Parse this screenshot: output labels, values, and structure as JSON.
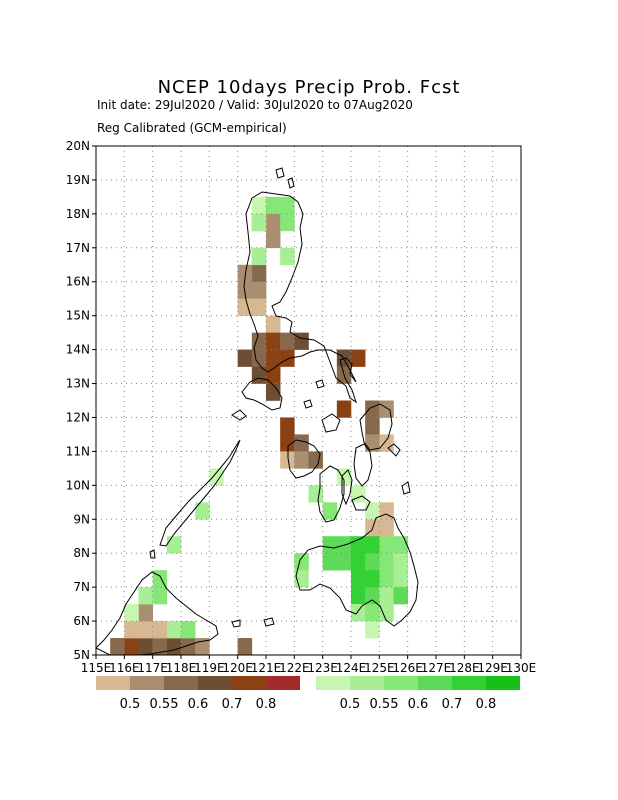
{
  "header": {
    "title": "NCEP 10days Precip Prob. Fcst",
    "subtitle": "Init date: 29Jul2020 / Valid: 30Jul2020 to 07Aug2020",
    "method": "Reg Calibrated (GCM-empirical)"
  },
  "map": {
    "lon_range": [
      115,
      130
    ],
    "lat_range": [
      5,
      20
    ],
    "lon_tick_labels": [
      "115E",
      "116E",
      "117E",
      "118E",
      "119E",
      "120E",
      "121E",
      "122E",
      "123E",
      "124E",
      "125E",
      "126E",
      "127E",
      "128E",
      "129E",
      "130E"
    ],
    "lat_tick_labels": [
      "5N",
      "6N",
      "7N",
      "8N",
      "9N",
      "10N",
      "11N",
      "12N",
      "13N",
      "14N",
      "15N",
      "16N",
      "17N",
      "18N",
      "19N",
      "20N"
    ],
    "grid": "dotted"
  },
  "legends": {
    "dry": {
      "colors": [
        "#d8b892",
        "#a98e6f",
        "#87694d",
        "#6d4e33",
        "#8a4214",
        "#a32b2b"
      ],
      "labels": [
        "0.5",
        "0.55",
        "0.6",
        "0.7",
        "0.8"
      ]
    },
    "wet": {
      "colors": [
        "#c8f5b0",
        "#a8ee94",
        "#86e676",
        "#5ddb58",
        "#33d133",
        "#16c016"
      ],
      "labels": [
        "0.5",
        "0.55",
        "0.6",
        "0.7",
        "0.8"
      ]
    }
  },
  "chart_data": {
    "type": "heatmap",
    "title": "NCEP 10days Precip Prob. Fcst",
    "cell_size_deg": 0.5,
    "categories_legend": [
      "0.5",
      "0.55",
      "0.6",
      "0.7",
      "0.8"
    ],
    "dry_cells": [
      {
        "lon": 120.5,
        "lat": 17.5,
        "level": 1
      },
      {
        "lon": 121.0,
        "lat": 17.5,
        "level": 1
      },
      {
        "lon": 121.0,
        "lat": 17.0,
        "level": 1
      },
      {
        "lon": 120.5,
        "lat": 16.5,
        "level": 0
      },
      {
        "lon": 120.5,
        "lat": 16.0,
        "level": 2
      },
      {
        "lon": 120.5,
        "lat": 15.5,
        "level": 1
      },
      {
        "lon": 120.0,
        "lat": 16.0,
        "level": 1
      },
      {
        "lon": 120.0,
        "lat": 15.5,
        "level": 1
      },
      {
        "lon": 120.0,
        "lat": 15.0,
        "level": 0
      },
      {
        "lon": 120.5,
        "lat": 15.0,
        "level": 0
      },
      {
        "lon": 121.0,
        "lat": 14.5,
        "level": 0
      },
      {
        "lon": 120.5,
        "lat": 14.0,
        "level": 2
      },
      {
        "lon": 121.0,
        "lat": 14.0,
        "level": 4
      },
      {
        "lon": 121.5,
        "lat": 14.0,
        "level": 2
      },
      {
        "lon": 122.0,
        "lat": 14.0,
        "level": 3
      },
      {
        "lon": 120.0,
        "lat": 13.5,
        "level": 3
      },
      {
        "lon": 120.5,
        "lat": 13.5,
        "level": 2
      },
      {
        "lon": 121.0,
        "lat": 13.5,
        "level": 4
      },
      {
        "lon": 121.5,
        "lat": 13.5,
        "level": 4
      },
      {
        "lon": 120.5,
        "lat": 13.0,
        "level": 3
      },
      {
        "lon": 121.0,
        "lat": 13.0,
        "level": 4
      },
      {
        "lon": 121.0,
        "lat": 12.5,
        "level": 3
      },
      {
        "lon": 123.5,
        "lat": 13.5,
        "level": 3
      },
      {
        "lon": 124.0,
        "lat": 13.5,
        "level": 4
      },
      {
        "lon": 123.5,
        "lat": 13.0,
        "level": 2
      },
      {
        "lon": 123.5,
        "lat": 12.0,
        "level": 4
      },
      {
        "lon": 121.5,
        "lat": 11.5,
        "level": 4
      },
      {
        "lon": 121.5,
        "lat": 11.0,
        "level": 4
      },
      {
        "lon": 122.0,
        "lat": 11.0,
        "level": 2
      },
      {
        "lon": 121.5,
        "lat": 10.5,
        "level": 0
      },
      {
        "lon": 122.0,
        "lat": 10.5,
        "level": 1
      },
      {
        "lon": 122.5,
        "lat": 10.5,
        "level": 2
      },
      {
        "lon": 124.5,
        "lat": 12.0,
        "level": 2
      },
      {
        "lon": 125.0,
        "lat": 12.0,
        "level": 1
      },
      {
        "lon": 124.5,
        "lat": 11.5,
        "level": 2
      },
      {
        "lon": 124.5,
        "lat": 11.0,
        "level": 1
      },
      {
        "lon": 125.0,
        "lat": 11.0,
        "level": 0
      },
      {
        "lon": 125.0,
        "lat": 9.0,
        "level": 0
      },
      {
        "lon": 124.5,
        "lat": 8.5,
        "level": 0
      },
      {
        "lon": 125.0,
        "lat": 8.5,
        "level": 0
      },
      {
        "lon": 115.5,
        "lat": 5.0,
        "level": 2
      },
      {
        "lon": 116.0,
        "lat": 5.0,
        "level": 4
      },
      {
        "lon": 116.5,
        "lat": 5.0,
        "level": 3
      },
      {
        "lon": 117.0,
        "lat": 5.0,
        "level": 2
      },
      {
        "lon": 117.5,
        "lat": 5.0,
        "level": 3
      },
      {
        "lon": 118.0,
        "lat": 5.0,
        "level": 2
      },
      {
        "lon": 118.5,
        "lat": 5.0,
        "level": 1
      },
      {
        "lon": 116.0,
        "lat": 5.5,
        "level": 0
      },
      {
        "lon": 116.5,
        "lat": 5.5,
        "level": 0
      },
      {
        "lon": 117.0,
        "lat": 5.5,
        "level": 0
      },
      {
        "lon": 116.5,
        "lat": 6.0,
        "level": 1
      },
      {
        "lon": 120.0,
        "lat": 5.0,
        "level": 2
      }
    ],
    "wet_cells": [
      {
        "lon": 120.5,
        "lat": 18.0,
        "level": 0
      },
      {
        "lon": 121.0,
        "lat": 18.0,
        "level": 2
      },
      {
        "lon": 121.5,
        "lat": 18.0,
        "level": 2
      },
      {
        "lon": 120.5,
        "lat": 17.5,
        "level": 1
      },
      {
        "lon": 121.5,
        "lat": 17.5,
        "level": 2
      },
      {
        "lon": 120.5,
        "lat": 16.5,
        "level": 1
      },
      {
        "lon": 121.5,
        "lat": 16.5,
        "level": 1
      },
      {
        "lon": 119.0,
        "lat": 10.0,
        "level": 0
      },
      {
        "lon": 118.5,
        "lat": 9.0,
        "level": 1
      },
      {
        "lon": 117.5,
        "lat": 8.0,
        "level": 1
      },
      {
        "lon": 122.5,
        "lat": 9.5,
        "level": 1
      },
      {
        "lon": 123.0,
        "lat": 9.0,
        "level": 2
      },
      {
        "lon": 123.5,
        "lat": 10.0,
        "level": 0
      },
      {
        "lon": 124.0,
        "lat": 9.5,
        "level": 0
      },
      {
        "lon": 124.5,
        "lat": 9.0,
        "level": 0
      },
      {
        "lon": 123.0,
        "lat": 8.0,
        "level": 3
      },
      {
        "lon": 123.5,
        "lat": 8.0,
        "level": 3
      },
      {
        "lon": 124.0,
        "lat": 8.0,
        "level": 4
      },
      {
        "lon": 124.5,
        "lat": 8.0,
        "level": 4
      },
      {
        "lon": 125.0,
        "lat": 8.0,
        "level": 2
      },
      {
        "lon": 125.5,
        "lat": 8.0,
        "level": 2
      },
      {
        "lon": 122.0,
        "lat": 7.5,
        "level": 2
      },
      {
        "lon": 123.0,
        "lat": 7.5,
        "level": 3
      },
      {
        "lon": 123.5,
        "lat": 7.5,
        "level": 3
      },
      {
        "lon": 124.0,
        "lat": 7.5,
        "level": 4
      },
      {
        "lon": 124.5,
        "lat": 7.5,
        "level": 3
      },
      {
        "lon": 125.0,
        "lat": 7.5,
        "level": 2
      },
      {
        "lon": 125.5,
        "lat": 7.5,
        "level": 1
      },
      {
        "lon": 122.0,
        "lat": 7.0,
        "level": 1
      },
      {
        "lon": 124.0,
        "lat": 7.0,
        "level": 4
      },
      {
        "lon": 124.5,
        "lat": 7.0,
        "level": 4
      },
      {
        "lon": 125.0,
        "lat": 7.0,
        "level": 2
      },
      {
        "lon": 125.5,
        "lat": 7.0,
        "level": 1
      },
      {
        "lon": 124.0,
        "lat": 6.5,
        "level": 4
      },
      {
        "lon": 124.5,
        "lat": 6.5,
        "level": 3
      },
      {
        "lon": 125.0,
        "lat": 6.5,
        "level": 1
      },
      {
        "lon": 125.5,
        "lat": 6.5,
        "level": 3
      },
      {
        "lon": 124.0,
        "lat": 6.0,
        "level": 1
      },
      {
        "lon": 124.5,
        "lat": 6.0,
        "level": 2
      },
      {
        "lon": 125.0,
        "lat": 6.0,
        "level": 1
      },
      {
        "lon": 124.5,
        "lat": 5.5,
        "level": 0
      },
      {
        "lon": 117.0,
        "lat": 7.0,
        "level": 2
      },
      {
        "lon": 116.5,
        "lat": 6.5,
        "level": 1
      },
      {
        "lon": 117.0,
        "lat": 6.5,
        "level": 2
      },
      {
        "lon": 116.0,
        "lat": 6.0,
        "level": 0
      },
      {
        "lon": 117.5,
        "lat": 5.5,
        "level": 1
      },
      {
        "lon": 118.0,
        "lat": 5.5,
        "level": 2
      }
    ]
  }
}
